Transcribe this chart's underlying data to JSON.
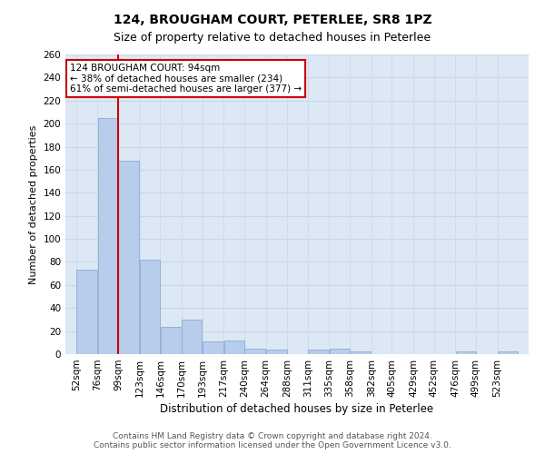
{
  "title": "124, BROUGHAM COURT, PETERLEE, SR8 1PZ",
  "subtitle": "Size of property relative to detached houses in Peterlee",
  "xlabel": "Distribution of detached houses by size in Peterlee",
  "ylabel": "Number of detached properties",
  "footer_line1": "Contains HM Land Registry data © Crown copyright and database right 2024.",
  "footer_line2": "Contains public sector information licensed under the Open Government Licence v3.0.",
  "bar_labels": [
    "52sqm",
    "76sqm",
    "99sqm",
    "123sqm",
    "146sqm",
    "170sqm",
    "193sqm",
    "217sqm",
    "240sqm",
    "264sqm",
    "288sqm",
    "311sqm",
    "335sqm",
    "358sqm",
    "382sqm",
    "405sqm",
    "429sqm",
    "452sqm",
    "476sqm",
    "499sqm",
    "523sqm"
  ],
  "bar_values": [
    73,
    205,
    168,
    82,
    24,
    30,
    11,
    12,
    5,
    4,
    0,
    4,
    5,
    2,
    0,
    0,
    0,
    0,
    2,
    0,
    2
  ],
  "bar_color": "#b8cceb",
  "bar_edge_color": "#8aadd4",
  "grid_color": "#c8d8ea",
  "background_color": "#dde8f5",
  "annotation_text": "124 BROUGHAM COURT: 94sqm\n← 38% of detached houses are smaller (234)\n61% of semi-detached houses are larger (377) →",
  "annotation_box_color": "#ffffff",
  "annotation_border_color": "#cc0000",
  "vline_x": 99,
  "vline_color": "#cc0000",
  "ylim": [
    0,
    260
  ],
  "yticks": [
    0,
    20,
    40,
    60,
    80,
    100,
    120,
    140,
    160,
    180,
    200,
    220,
    240,
    260
  ],
  "title_fontsize": 10,
  "subtitle_fontsize": 9,
  "xlabel_fontsize": 8.5,
  "ylabel_fontsize": 8,
  "tick_fontsize": 7.5,
  "annotation_fontsize": 7.5,
  "footer_fontsize": 6.5
}
